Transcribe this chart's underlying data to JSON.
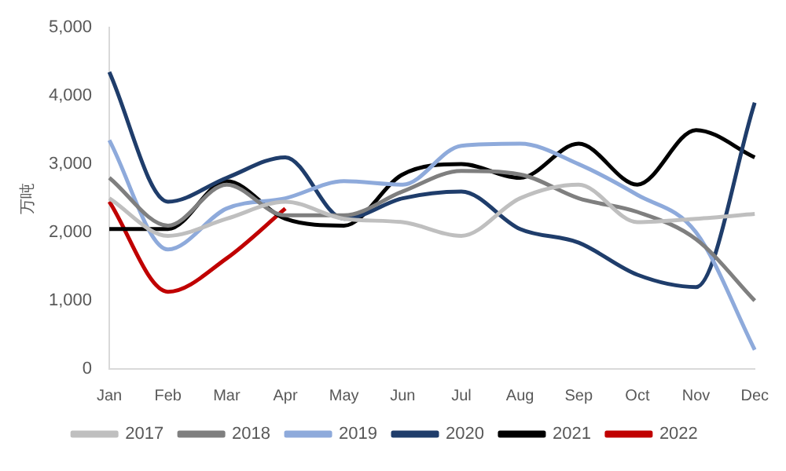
{
  "chart_data": {
    "type": "line",
    "ylabel": "万吨",
    "categories": [
      "Jan",
      "Feb",
      "Mar",
      "Apr",
      "May",
      "Jun",
      "Jul",
      "Aug",
      "Sep",
      "Oct",
      "Nov",
      "Dec"
    ],
    "series": [
      {
        "name": "2017",
        "color": "#bfbfbf",
        "values": [
          2500,
          1950,
          2200,
          2450,
          2200,
          2150,
          1950,
          2500,
          2700,
          2150,
          2200,
          2270
        ]
      },
      {
        "name": "2018",
        "color": "#7f7f7f",
        "values": [
          2800,
          2100,
          2700,
          2250,
          2250,
          2600,
          2900,
          2850,
          2500,
          2300,
          1900,
          1000
        ]
      },
      {
        "name": "2019",
        "color": "#8eaadb",
        "values": [
          3350,
          1750,
          2350,
          2500,
          2750,
          2700,
          3270,
          3300,
          3000,
          2550,
          2000,
          280
        ]
      },
      {
        "name": "2020",
        "color": "#1f3d6b",
        "values": [
          4350,
          2450,
          2800,
          3100,
          2200,
          2500,
          2600,
          2050,
          1850,
          1380,
          1200,
          3900
        ]
      },
      {
        "name": "2021",
        "color": "#000000",
        "values": [
          2050,
          2050,
          2750,
          2200,
          2100,
          2850,
          3000,
          2800,
          3300,
          2700,
          3500,
          3100
        ]
      },
      {
        "name": "2022",
        "color": "#c00000",
        "values": [
          2450,
          1130,
          1620,
          2350,
          null,
          null,
          null,
          null,
          null,
          null,
          null,
          null
        ]
      }
    ],
    "ylim": [
      0,
      5000
    ],
    "yticks": [
      {
        "value": 0,
        "label": "0"
      },
      {
        "value": 1000,
        "label": "1,000"
      },
      {
        "value": 2000,
        "label": "2,000"
      },
      {
        "value": 3000,
        "label": "3,000"
      },
      {
        "value": 4000,
        "label": "4,000"
      },
      {
        "value": 5000,
        "label": "5,000"
      }
    ],
    "grid": false,
    "legend": "bottom",
    "marker": "none",
    "line_style": "solid"
  }
}
